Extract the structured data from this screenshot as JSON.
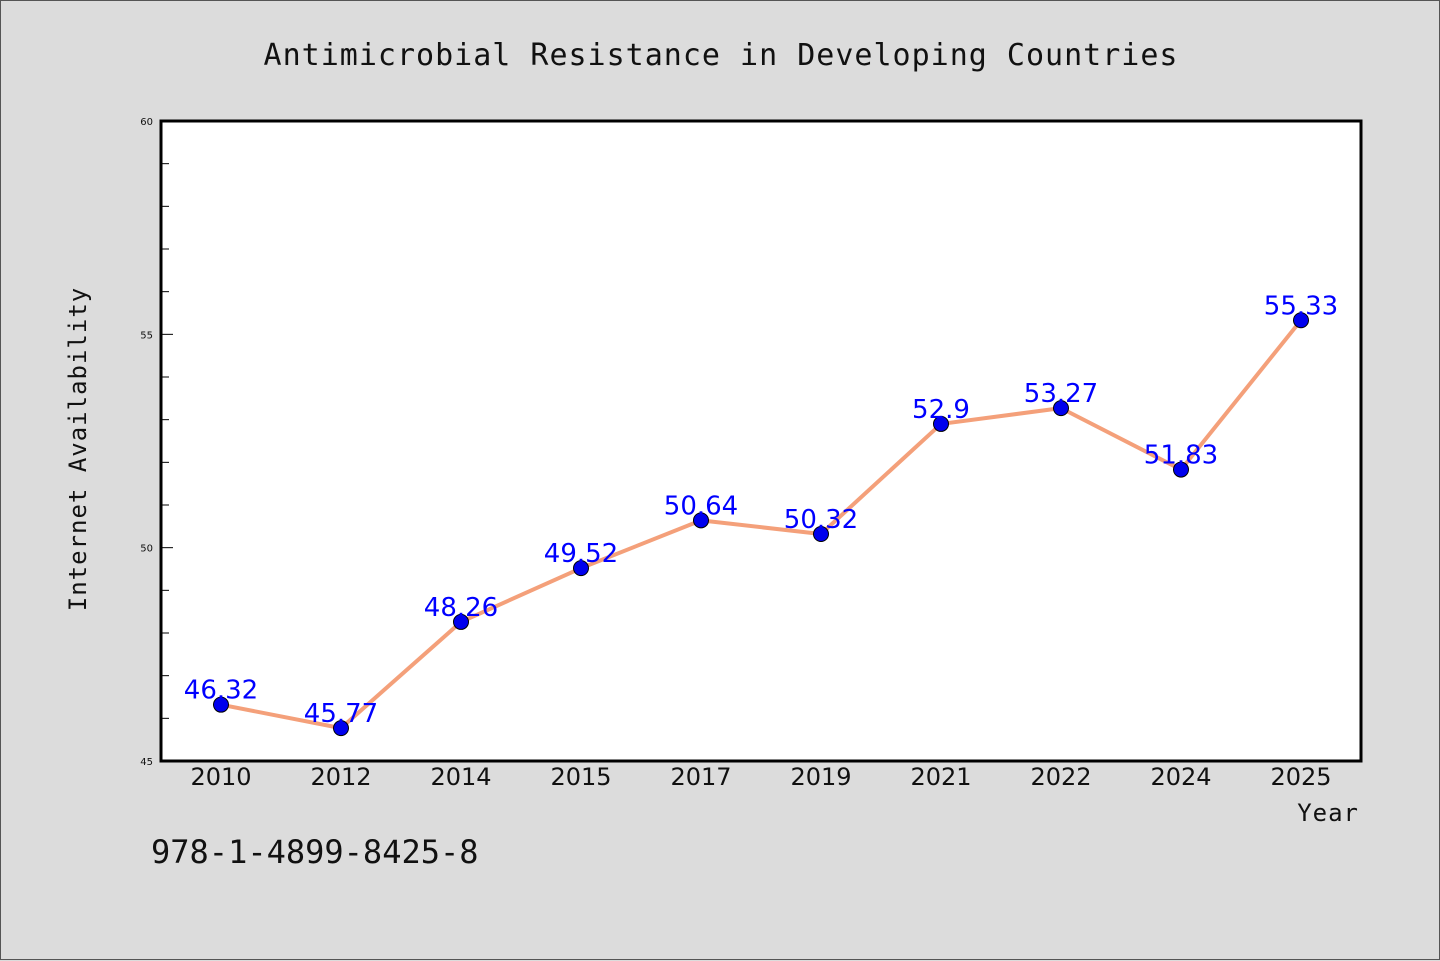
{
  "chart_data": {
    "type": "line",
    "title": "Antimicrobial Resistance in Developing Countries",
    "xlabel": "Year",
    "ylabel": "Internet Availability",
    "categories": [
      "2010",
      "2012",
      "2014",
      "2015",
      "2017",
      "2019",
      "2021",
      "2022",
      "2024",
      "2025"
    ],
    "values": [
      46.32,
      45.77,
      48.26,
      49.52,
      50.64,
      50.32,
      52.9,
      53.27,
      51.83,
      55.33
    ],
    "data_labels": [
      "46.32",
      "45.77",
      "48.26",
      "49.52",
      "50.64",
      "50.32",
      "52.9",
      "53.27",
      "51.83",
      "55.33"
    ],
    "ylim": [
      45,
      60
    ],
    "yticks": [
      45,
      50,
      55,
      60
    ],
    "yminor_step": 1,
    "grid": false,
    "legend": "none",
    "colors": {
      "line": "#f4a07a",
      "marker": "#0000ee",
      "data_label": "#0000ff",
      "plot_background": "#ffffff",
      "page_background": "#dcdcdc"
    }
  },
  "footer_code": "978-1-4899-8425-8"
}
